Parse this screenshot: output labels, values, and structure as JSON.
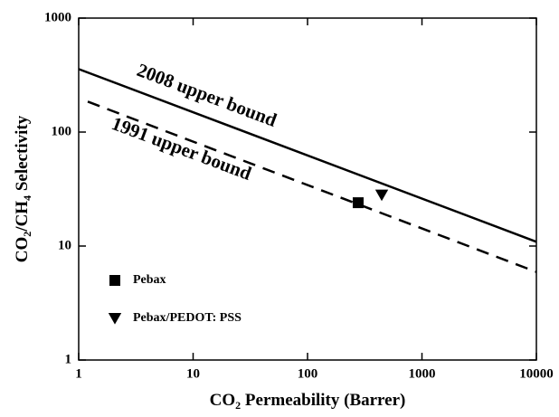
{
  "chart_data": {
    "type": "scatter",
    "xlabel": [
      "CO",
      "2",
      " Permeability (Barrer)"
    ],
    "ylabel": [
      "CO",
      "2",
      "/CH",
      "4",
      " Selectivity"
    ],
    "xscale": "log",
    "yscale": "log",
    "xlim": [
      1,
      10000
    ],
    "ylim": [
      1,
      1000
    ],
    "xticks": [
      1,
      10,
      100,
      1000,
      10000
    ],
    "yticks": [
      1,
      10,
      100,
      1000
    ],
    "legend": "lower left",
    "series": [
      {
        "name": "Pebax",
        "marker": "square",
        "color": "#000000",
        "x": [
          277
        ],
        "values": [
          24
        ]
      },
      {
        "name": "Pebax/PEDOT: PSS",
        "marker": "triangle-down",
        "color": "#000000",
        "x": [
          445
        ],
        "values": [
          28
        ]
      }
    ],
    "lines": [
      {
        "style": "solid",
        "color": "#000000",
        "x": [
          1,
          10000
        ],
        "values": [
          357,
          10.9
        ]
      },
      {
        "style": "dashed",
        "color": "#000000",
        "x": [
          1.2,
          10000
        ],
        "values": [
          185,
          5.93
        ]
      }
    ],
    "annotations": [
      "2008 upper bound",
      "1991 upper bound"
    ]
  }
}
